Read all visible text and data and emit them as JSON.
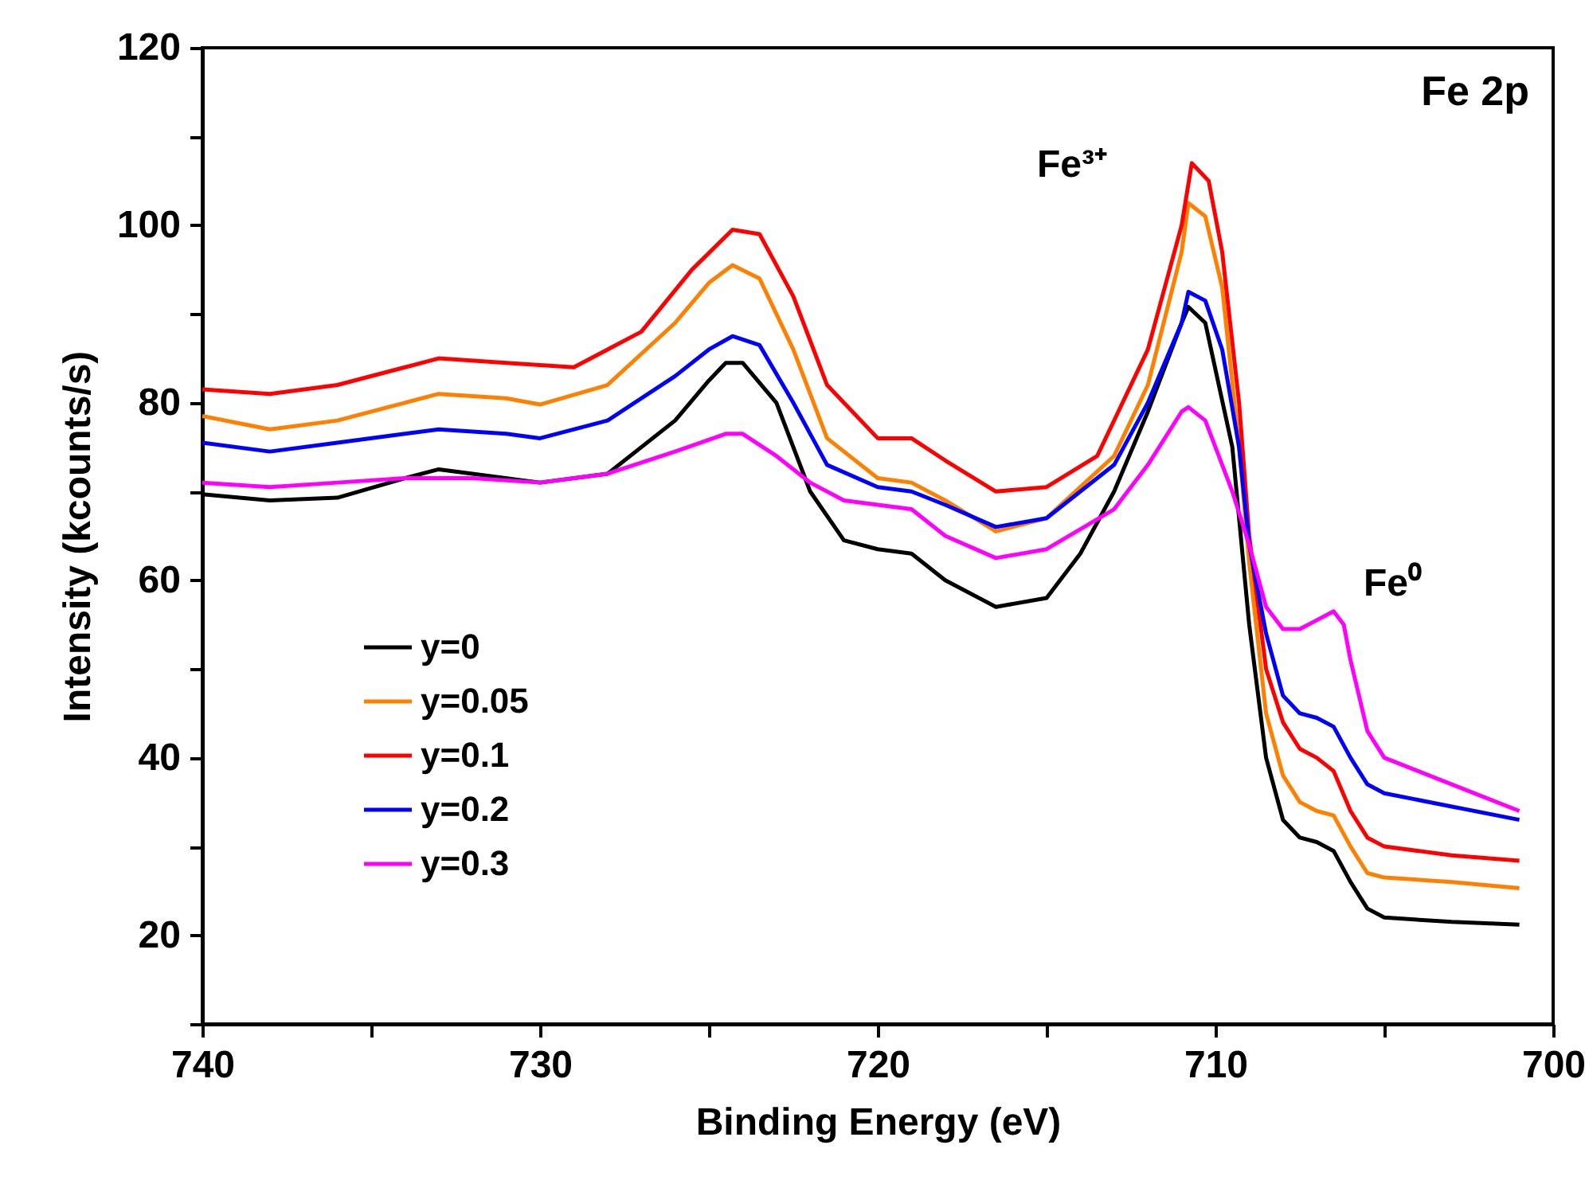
{
  "chart_data": {
    "type": "line",
    "xlabel": "Binding Energy (eV)",
    "ylabel": "Intensity (kcounts/s)",
    "xlim": [
      740,
      700
    ],
    "ylim": [
      10,
      120
    ],
    "xticks": [
      740,
      {
        "value": 735,
        "label": null
      },
      730,
      {
        "value": 725,
        "label": null
      },
      720,
      {
        "value": 715,
        "label": null
      },
      710,
      {
        "value": 705,
        "label": null
      },
      700
    ],
    "yticks": [
      {
        "value": 10,
        "label": null
      },
      20,
      {
        "value": 30,
        "label": null
      },
      40,
      {
        "value": 50,
        "label": null
      },
      60,
      {
        "value": 70,
        "label": null
      },
      80,
      {
        "value": 90,
        "label": null
      },
      100,
      {
        "value": 110,
        "label": null
      },
      120
    ],
    "grid": false,
    "legend": "bottom left",
    "marker": "none",
    "line_style": "solid",
    "annotations": [
      "Fe 2p",
      "Fe³⁺",
      "Fe⁰"
    ],
    "series": [
      {
        "name": "y=0",
        "color": "#000000",
        "x": [
          740,
          738,
          736,
          734,
          733,
          732,
          730,
          728,
          726,
          725,
          724.5,
          724,
          723,
          722,
          721,
          720,
          719,
          718,
          716.5,
          715,
          714,
          713,
          712,
          711,
          710.8,
          710.3,
          709.5,
          709,
          708.5,
          708,
          707.5,
          707,
          706.5,
          706,
          705.5,
          705,
          703,
          701
        ],
        "values": [
          69.7,
          69,
          69.3,
          71.5,
          72.5,
          72,
          71,
          72,
          78,
          82.5,
          84.5,
          84.5,
          80,
          70,
          64.5,
          63.5,
          63,
          60,
          57,
          58,
          63,
          70,
          79,
          89,
          90.8,
          89,
          75,
          55,
          40,
          33,
          31,
          30.5,
          29.5,
          26,
          23,
          22,
          21.5,
          21.2
        ]
      },
      {
        "name": "y=0.05",
        "color": "#ff8000",
        "x": [
          740,
          738,
          736,
          734,
          733,
          731,
          730,
          728,
          726,
          725,
          724.3,
          723.5,
          722.5,
          721.5,
          720,
          719,
          718,
          716.5,
          715,
          713,
          712,
          711,
          710.8,
          710.3,
          709.8,
          709.3,
          709,
          708.5,
          708,
          707.5,
          707,
          706.5,
          706,
          705.5,
          705,
          703,
          701
        ],
        "values": [
          78.5,
          77,
          78,
          80,
          81,
          80.5,
          79.8,
          82,
          89,
          93.5,
          95.5,
          94,
          86,
          76,
          71.5,
          71,
          69,
          65.5,
          67,
          74,
          82,
          97,
          102.5,
          101,
          93,
          75,
          62,
          45,
          38,
          35,
          34,
          33.5,
          30,
          27,
          26.5,
          26,
          25.3
        ]
      },
      {
        "name": "y=0.1",
        "color": "#ff0000",
        "x": [
          740,
          738,
          736,
          734,
          733,
          731,
          729,
          727,
          725.5,
          724.3,
          723.5,
          722.5,
          721.5,
          720,
          719,
          718,
          716.5,
          715,
          713.5,
          712,
          711,
          710.7,
          710.2,
          709.8,
          709.3,
          709,
          708.5,
          708,
          707.5,
          707,
          706.5,
          706,
          705.5,
          705,
          703,
          701
        ],
        "values": [
          81.5,
          81,
          82,
          84,
          85,
          84.5,
          84,
          88,
          95,
          99.5,
          99,
          92,
          82,
          76,
          76,
          73.5,
          70,
          70.5,
          74,
          86,
          100,
          107,
          105,
          97,
          80,
          65,
          50,
          44,
          41,
          40,
          38.5,
          34,
          31,
          30,
          29,
          28.4
        ]
      },
      {
        "name": "y=0.2",
        "color": "#0000ff",
        "x": [
          740,
          738,
          736,
          734,
          733,
          731,
          730,
          728,
          726,
          725,
          724.3,
          723.5,
          722.5,
          721.5,
          720,
          719,
          718,
          716.5,
          715,
          713,
          712,
          711,
          710.8,
          710.3,
          709.8,
          709.3,
          709,
          708.5,
          708,
          707.5,
          707,
          706.5,
          706,
          705.5,
          705,
          703,
          701
        ],
        "values": [
          75.5,
          74.5,
          75.5,
          76.5,
          77,
          76.5,
          76,
          78,
          83,
          86,
          87.5,
          86.5,
          80,
          73,
          70.5,
          70,
          68.5,
          66,
          67,
          73,
          80,
          89,
          92.5,
          91.5,
          86,
          75,
          64,
          54,
          47,
          45,
          44.5,
          43.5,
          40,
          37,
          36,
          34.5,
          33
        ]
      },
      {
        "name": "y=0.3",
        "color": "#ff00ff",
        "x": [
          740,
          738,
          736,
          734,
          732,
          730,
          728,
          726,
          724.5,
          724,
          723,
          722,
          721,
          720,
          719,
          718,
          716.5,
          715,
          713,
          712,
          711,
          710.8,
          710.3,
          709.5,
          709,
          708.5,
          708,
          707.5,
          707,
          706.5,
          706.2,
          706,
          705.5,
          705,
          704,
          703,
          701
        ],
        "values": [
          71,
          70.5,
          71,
          71.5,
          71.5,
          71,
          72,
          74.5,
          76.5,
          76.5,
          74,
          71,
          69,
          68.5,
          68,
          65,
          62.5,
          63.5,
          68,
          73,
          79,
          79.5,
          78,
          70,
          64,
          57,
          54.5,
          54.5,
          55.5,
          56.5,
          55,
          51,
          43,
          40,
          38.5,
          37,
          34
        ]
      }
    ]
  }
}
